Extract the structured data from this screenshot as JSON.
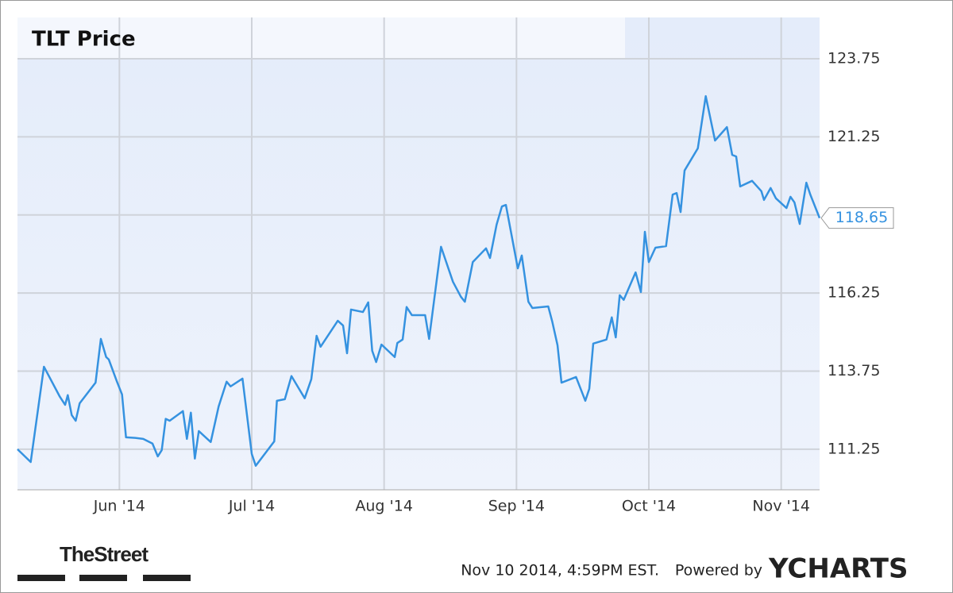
{
  "chart_data": {
    "type": "line",
    "title": "TLT Price",
    "xlim": [
      5.23,
      11.29
    ],
    "ylim": [
      109.95,
      125.07
    ],
    "xticks": [
      {
        "value": 6,
        "label": "Jun '14"
      },
      {
        "value": 7,
        "label": "Jul '14"
      },
      {
        "value": 8,
        "label": "Aug '14"
      },
      {
        "value": 9,
        "label": "Sep '14"
      },
      {
        "value": 10,
        "label": "Oct '14"
      },
      {
        "value": 11,
        "label": "Nov '14"
      }
    ],
    "yticks": [
      111.25,
      113.75,
      116.25,
      118.75,
      121.25,
      123.75
    ],
    "grid": true,
    "color": "#3592e0",
    "x": [
      5.23,
      5.33,
      5.43,
      5.55,
      5.59,
      5.61,
      5.64,
      5.67,
      5.7,
      5.82,
      5.86,
      5.9,
      5.92,
      5.98,
      6.02,
      6.05,
      6.12,
      6.18,
      6.25,
      6.29,
      6.32,
      6.35,
      6.38,
      6.48,
      6.51,
      6.54,
      6.57,
      6.6,
      6.69,
      6.75,
      6.81,
      6.84,
      6.93,
      7.0,
      7.03,
      7.17,
      7.19,
      7.25,
      7.3,
      7.4,
      7.45,
      7.49,
      7.52,
      7.65,
      7.69,
      7.72,
      7.75,
      7.84,
      7.88,
      7.91,
      7.94,
      7.98,
      8.08,
      8.1,
      8.14,
      8.17,
      8.21,
      8.31,
      8.34,
      8.43,
      8.52,
      8.58,
      8.61,
      8.67,
      8.77,
      8.8,
      8.85,
      8.89,
      8.92,
      9.01,
      9.04,
      9.09,
      9.12,
      9.24,
      9.27,
      9.31,
      9.34,
      9.45,
      9.52,
      9.55,
      9.58,
      9.68,
      9.72,
      9.75,
      9.78,
      9.81,
      9.9,
      9.94,
      9.97,
      10.0,
      10.05,
      10.13,
      10.18,
      10.21,
      10.24,
      10.27,
      10.37,
      10.43,
      10.5,
      10.59,
      10.63,
      10.66,
      10.69,
      10.78,
      10.85,
      10.87,
      10.92,
      10.96,
      11.04,
      11.07,
      11.1,
      11.14,
      11.19,
      11.22,
      11.29
    ],
    "values": [
      111.25,
      110.84,
      113.89,
      112.93,
      112.67,
      112.98,
      112.34,
      112.16,
      112.72,
      113.38,
      114.78,
      114.2,
      114.12,
      113.43,
      113.0,
      111.63,
      111.61,
      111.58,
      111.43,
      111.02,
      111.22,
      112.22,
      112.16,
      112.47,
      111.58,
      112.42,
      110.95,
      111.83,
      111.48,
      112.62,
      113.41,
      113.26,
      113.51,
      111.1,
      110.72,
      111.5,
      112.8,
      112.85,
      113.59,
      112.88,
      113.49,
      114.88,
      114.53,
      115.36,
      115.21,
      114.32,
      115.72,
      115.64,
      115.95,
      114.4,
      114.04,
      114.6,
      114.2,
      114.65,
      114.76,
      115.8,
      115.54,
      115.54,
      114.78,
      117.73,
      116.61,
      116.13,
      115.97,
      117.24,
      117.68,
      117.37,
      118.44,
      119.02,
      119.07,
      117.04,
      117.45,
      115.97,
      115.77,
      115.82,
      115.34,
      114.58,
      113.38,
      113.56,
      112.8,
      113.18,
      114.63,
      114.76,
      115.47,
      114.83,
      116.18,
      116.03,
      116.91,
      116.28,
      118.21,
      117.24,
      117.7,
      117.75,
      119.4,
      119.45,
      118.84,
      120.17,
      120.88,
      122.55,
      121.13,
      121.56,
      120.67,
      120.62,
      119.66,
      119.84,
      119.51,
      119.23,
      119.61,
      119.28,
      118.97,
      119.33,
      119.15,
      118.46,
      119.78,
      119.4,
      118.65
    ]
  },
  "footer": {
    "timestamp": "Nov 10 2014, 4:59PM EST.",
    "powered": "Powered by",
    "brand": "YCHARTS",
    "source": "TheStreet"
  }
}
